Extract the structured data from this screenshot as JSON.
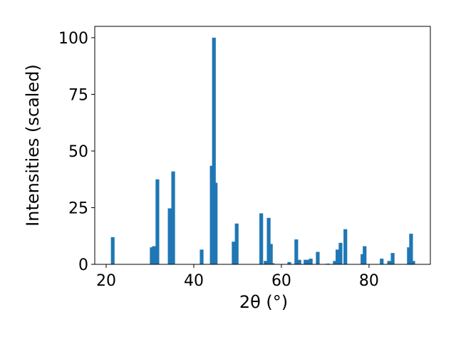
{
  "chart_data": {
    "type": "bar",
    "xlabel": "2θ (°)",
    "ylabel": "Intensities (scaled)",
    "x": [
      21.5,
      30.4,
      30.9,
      31.7,
      34.5,
      35.3,
      41.8,
      44.1,
      44.6,
      45.0,
      49.1,
      49.8,
      55.4,
      56.4,
      57.1,
      57.6,
      58.0,
      61.8,
      63.4,
      64.1,
      65.5,
      66.0,
      66.7,
      68.3,
      70.6,
      72.2,
      72.8,
      73.5,
      74.6,
      78.5,
      79.0,
      82.9,
      84.6,
      85.4,
      89.1,
      89.6,
      90.1
    ],
    "values": [
      12,
      7.5,
      8,
      37.5,
      24.7,
      41,
      6.5,
      43.5,
      100,
      36,
      10,
      18,
      22.5,
      1.5,
      20.5,
      9,
      0.5,
      1,
      11,
      2,
      2,
      2,
      2.5,
      5.5,
      0.3,
      1.5,
      6.5,
      9.5,
      15.5,
      4.5,
      8,
      2.5,
      1.5,
      5,
      7.5,
      13.5,
      1.5
    ],
    "color": "#1f77b4",
    "xlim": [
      17.4,
      94.0
    ],
    "xticks": [
      20,
      40,
      60,
      80
    ],
    "ylim": [
      0,
      105
    ],
    "yticks": [
      0,
      25,
      50,
      75,
      100
    ]
  }
}
